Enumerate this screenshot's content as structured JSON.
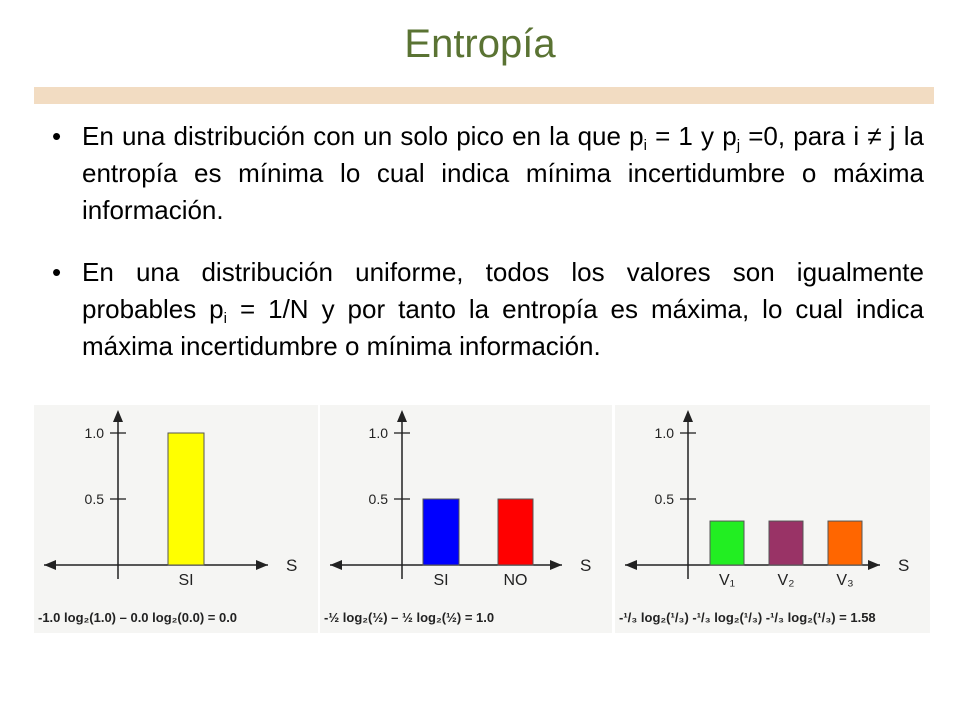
{
  "slide": {
    "title": "Entropía",
    "bullets": [
      {
        "parts": [
          {
            "t": "En una distribución con un solo pico en la que p"
          },
          {
            "sub": "i"
          },
          {
            "t": " = 1 y p"
          },
          {
            "sub": "j"
          },
          {
            "t": " =0, para i ≠ j la entropía es mínima lo cual indica mínima incertidumbre o máxima información."
          }
        ]
      },
      {
        "parts": [
          {
            "t": "En una distribución uniforme, todos los valores son igualmente probables p"
          },
          {
            "sub": "i"
          },
          {
            "t": " = 1/N y por tanto la entropía es máxima, lo cual indica máxima incertidumbre o mínima información."
          }
        ]
      }
    ]
  },
  "chart_data": [
    {
      "type": "bar",
      "categories": [
        "SI"
      ],
      "values": [
        1.0
      ],
      "colors": [
        "#ffff00"
      ],
      "xlabel": "S",
      "yticks": [
        "1.0",
        "0.5"
      ],
      "ylim": [
        0,
        1.0
      ],
      "formula": "-1.0 log₂(1.0) – 0.0 log₂(0.0) = 0.0"
    },
    {
      "type": "bar",
      "categories": [
        "SI",
        "NO"
      ],
      "values": [
        0.5,
        0.5
      ],
      "colors": [
        "#0000ff",
        "#ff0000"
      ],
      "xlabel": "S",
      "yticks": [
        "1.0",
        "0.5"
      ],
      "ylim": [
        0,
        1.0
      ],
      "formula": "-½ log₂(½) – ½ log₂(½) = 1.0"
    },
    {
      "type": "bar",
      "categories": [
        "V₁",
        "V₂",
        "V₃"
      ],
      "values": [
        0.333,
        0.333,
        0.333
      ],
      "colors": [
        "#22ee22",
        "#993366",
        "#ff6600"
      ],
      "xlabel": "S",
      "yticks": [
        "1.0",
        "0.5"
      ],
      "ylim": [
        0,
        1.0
      ],
      "formula": "-¹/₃ log₂(¹/₃) -¹/₃ log₂(¹/₃) -¹/₃ log₂(¹/₃) = 1.58"
    }
  ]
}
